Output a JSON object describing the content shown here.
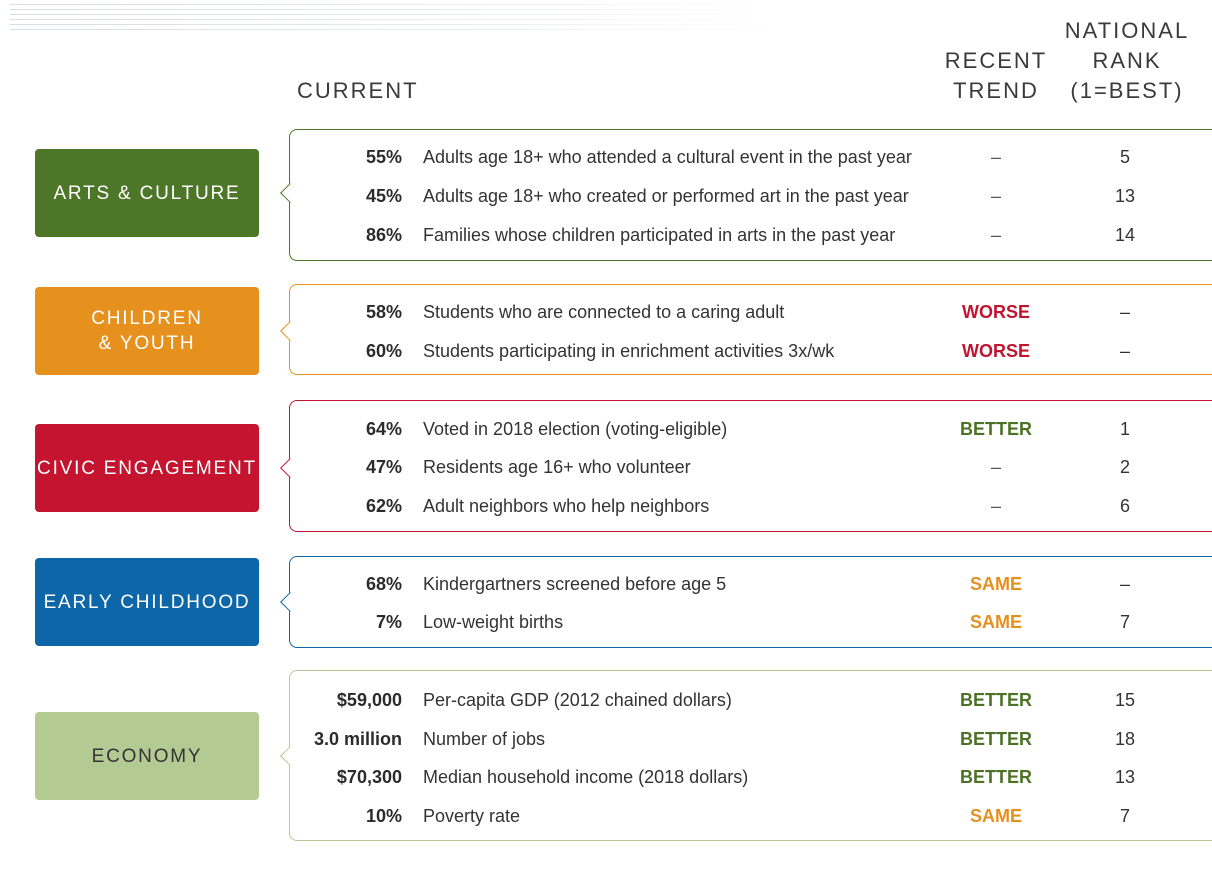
{
  "headers": {
    "current": "CURRENT",
    "trend": [
      "RECENT",
      "TREND"
    ],
    "rank": [
      "NATIONAL",
      "RANK",
      "(1=BEST)"
    ]
  },
  "colors": {
    "arts": "#4e7628",
    "children": "#e6901e",
    "civic": "#c4142f",
    "early": "#0d66a8",
    "economy": "#b4ca93",
    "better": "#4c7226",
    "worse": "#c0142f",
    "same": "#e5901e"
  },
  "sections": [
    {
      "id": "arts",
      "label": [
        "ARTS & CULTURE"
      ],
      "rows": [
        {
          "value": "55%",
          "desc": "Adults age 18+ who attended a cultural event in the past year",
          "trend": "–",
          "rank": "5"
        },
        {
          "value": "45%",
          "desc": "Adults age 18+ who created or performed art in the past year",
          "trend": "–",
          "rank": "13"
        },
        {
          "value": "86%",
          "desc": "Families whose children participated in arts in the past year",
          "trend": "–",
          "rank": "14"
        }
      ]
    },
    {
      "id": "children",
      "label": [
        "CHILDREN",
        "& YOUTH"
      ],
      "rows": [
        {
          "value": "58%",
          "desc": "Students who are connected to a caring adult",
          "trend": "WORSE",
          "rank": "–"
        },
        {
          "value": "60%",
          "desc": "Students participating in enrichment activities 3x/wk",
          "trend": "WORSE",
          "rank": "–"
        }
      ]
    },
    {
      "id": "civic",
      "label": [
        "CIVIC ENGAGEMENT"
      ],
      "rows": [
        {
          "value": "64%",
          "desc": "Voted in 2018 election (voting-eligible)",
          "trend": "BETTER",
          "rank": "1"
        },
        {
          "value": "47%",
          "desc": "Residents age 16+ who volunteer",
          "trend": "–",
          "rank": "2"
        },
        {
          "value": "62%",
          "desc": "Adult neighbors who help neighbors",
          "trend": "–",
          "rank": "6"
        }
      ]
    },
    {
      "id": "early",
      "label": [
        "EARLY CHILDHOOD"
      ],
      "rows": [
        {
          "value": "68%",
          "desc": "Kindergartners screened before age 5",
          "trend": "SAME",
          "rank": "–"
        },
        {
          "value": "7%",
          "desc": "Low-weight births",
          "trend": "SAME",
          "rank": "7"
        }
      ]
    },
    {
      "id": "economy",
      "label": [
        "ECONOMY"
      ],
      "rows": [
        {
          "value": "$59,000",
          "desc": "Per-capita GDP (2012 chained dollars)",
          "trend": "BETTER",
          "rank": "15"
        },
        {
          "value": "3.0 million",
          "desc": "Number of jobs",
          "trend": "BETTER",
          "rank": "18"
        },
        {
          "value": "$70,300",
          "desc": "Median household income (2018 dollars)",
          "trend": "BETTER",
          "rank": "13"
        },
        {
          "value": "10%",
          "desc": "Poverty rate",
          "trend": "SAME",
          "rank": "7"
        }
      ]
    }
  ]
}
